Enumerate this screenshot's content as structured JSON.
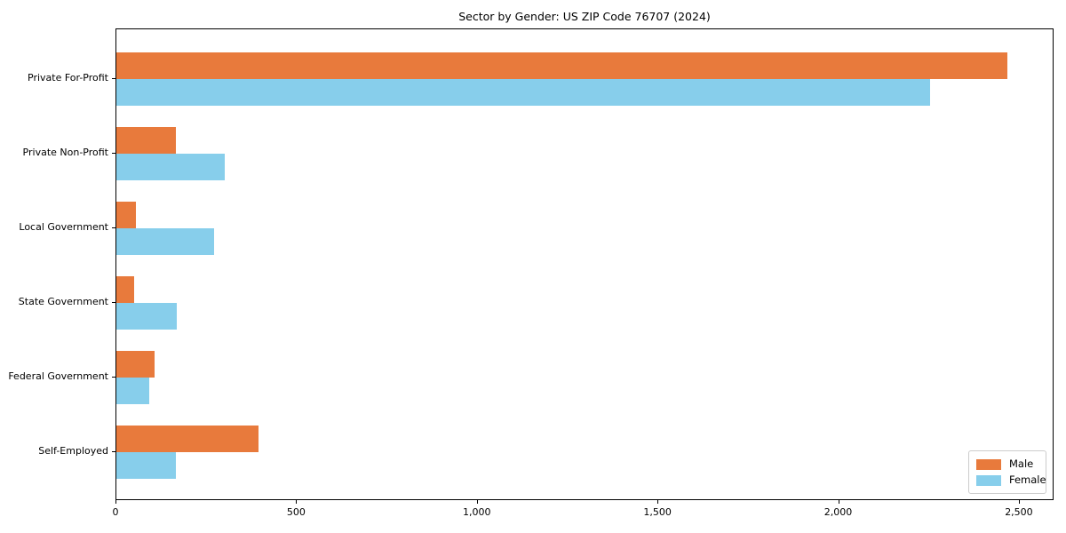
{
  "title": "Sector by Gender: US ZIP Code 76707 (2024)",
  "colors": {
    "male": "#e87a3c",
    "female": "#87ceeb",
    "axis": "#000000",
    "legend_border": "#cccccc",
    "background": "#ffffff"
  },
  "chart_data": {
    "type": "bar",
    "orientation": "horizontal",
    "title": "Sector by Gender: US ZIP Code 76707 (2024)",
    "categories": [
      "Private For-Profit",
      "Private Non-Profit",
      "Local Government",
      "State Government",
      "Federal Government",
      "Self-Employed"
    ],
    "series": [
      {
        "name": "Male",
        "color": "#e87a3c",
        "values": [
          2470,
          165,
          55,
          50,
          105,
          395
        ]
      },
      {
        "name": "Female",
        "color": "#87ceeb",
        "values": [
          2255,
          300,
          270,
          168,
          90,
          165
        ]
      }
    ],
    "xlabel": "",
    "ylabel": "",
    "xlim": [
      0,
      2596
    ],
    "xticks": [
      0,
      500,
      1000,
      1500,
      2000,
      2500
    ],
    "xtick_labels": [
      "0",
      "500",
      "1,000",
      "1,500",
      "2,000",
      "2,500"
    ],
    "grid": false,
    "legend_position": "lower right"
  }
}
